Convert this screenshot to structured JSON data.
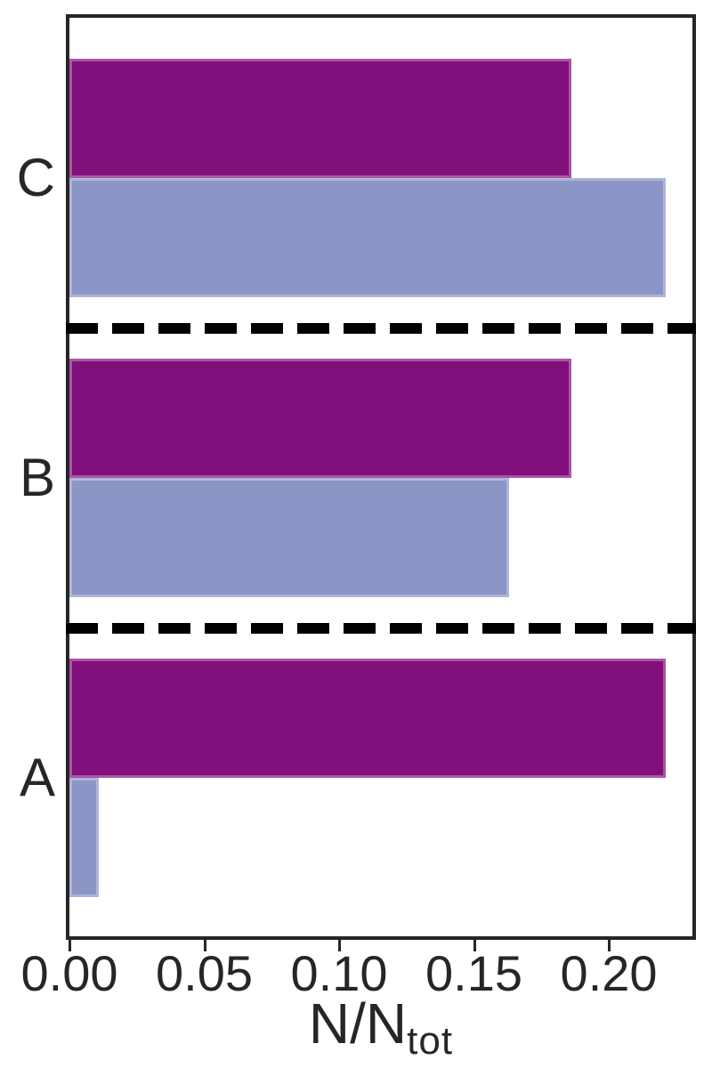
{
  "figure": {
    "background_color": "#ffffff",
    "spine_color": "#262626",
    "text_color": "#262626"
  },
  "chart_data": {
    "type": "bar",
    "orientation": "horizontal",
    "title": "",
    "xlabel_main": "N/N",
    "xlabel_sub": "tot",
    "ylabel": "",
    "categories_top_to_bottom": [
      "C",
      "B",
      "A"
    ],
    "series": [
      {
        "name": "dark-magenta-purple",
        "color": "#810f7c",
        "values_top_to_bottom": [
          0.186,
          0.186,
          0.221
        ]
      },
      {
        "name": "periwinkle-blue",
        "color": "#8c96c6",
        "values_top_to_bottom": [
          0.221,
          0.163,
          0.011
        ]
      }
    ],
    "x_ticks": [
      0.0,
      0.05,
      0.1,
      0.15,
      0.2
    ],
    "x_tick_labels": [
      "0.00",
      "0.05",
      "0.10",
      "0.15",
      "0.20"
    ],
    "xlim": [
      0,
      0.231
    ],
    "grid": false,
    "legend": "none",
    "group_separators": {
      "style": "dashed",
      "color": "#000000",
      "location": "between-category-groups"
    }
  }
}
